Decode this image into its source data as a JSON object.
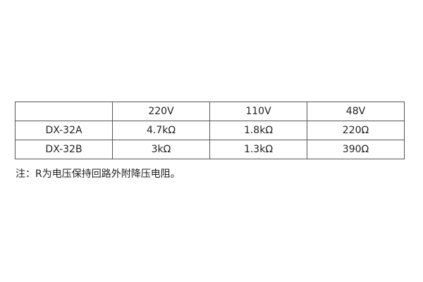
{
  "table": {
    "header": [
      "",
      "220V",
      "110V",
      "48V"
    ],
    "rows": [
      [
        "DX-32A",
        "4.7kΩ",
        "1.8kΩ",
        "220Ω"
      ],
      [
        "DX-32B",
        "3kΩ",
        "1.3kΩ",
        "390Ω"
      ]
    ]
  },
  "note": "注：R为电压保持回路外附降压电阻。"
}
